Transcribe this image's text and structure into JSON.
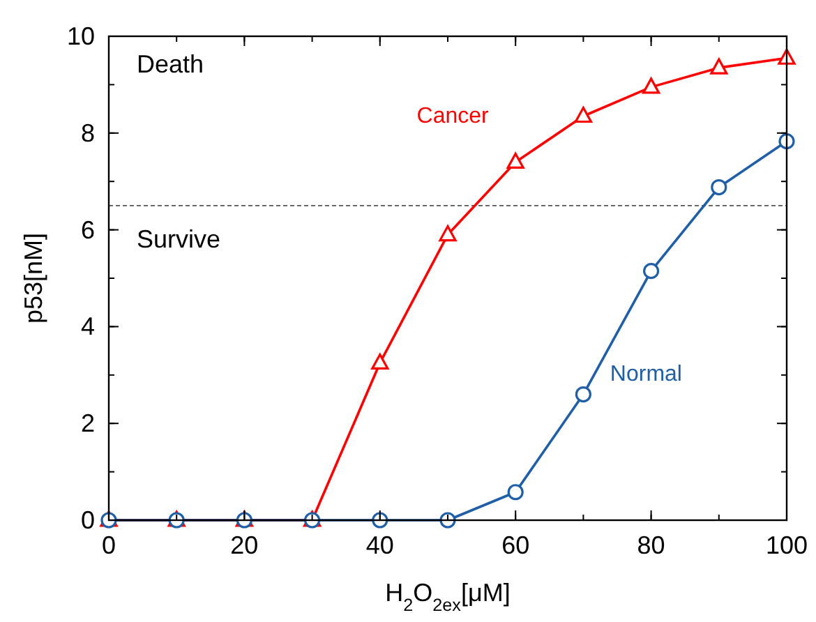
{
  "chart_data": {
    "type": "line",
    "xlabel": "H$_{2}$O$_{2ex}$[μM]",
    "ylabel": "p53[nM]",
    "x": [
      0,
      10,
      20,
      30,
      40,
      50,
      60,
      70,
      80,
      90,
      100
    ],
    "series": [
      {
        "name": "Cancer",
        "color": "#ff0000",
        "marker": "triangle",
        "values": [
          0,
          0,
          0,
          0,
          3.25,
          5.9,
          7.4,
          8.35,
          8.95,
          9.35,
          9.55
        ]
      },
      {
        "name": "Normal",
        "color": "#1f5fa8",
        "marker": "circle",
        "values": [
          0,
          0,
          0,
          0,
          0,
          0,
          0.58,
          2.6,
          5.15,
          6.88,
          7.83
        ]
      }
    ],
    "xlim": [
      0,
      100
    ],
    "xticks": [
      0,
      20,
      40,
      60,
      80,
      100
    ],
    "ylim": [
      0,
      10
    ],
    "yticks": [
      0,
      2,
      4,
      6,
      8,
      10
    ],
    "ref_lines": [
      {
        "axis": "y",
        "value": 6.5,
        "color": "#555555",
        "line_style": "dashed"
      }
    ],
    "annotations": [
      "Death",
      "Survive"
    ],
    "line_style": "solid"
  }
}
